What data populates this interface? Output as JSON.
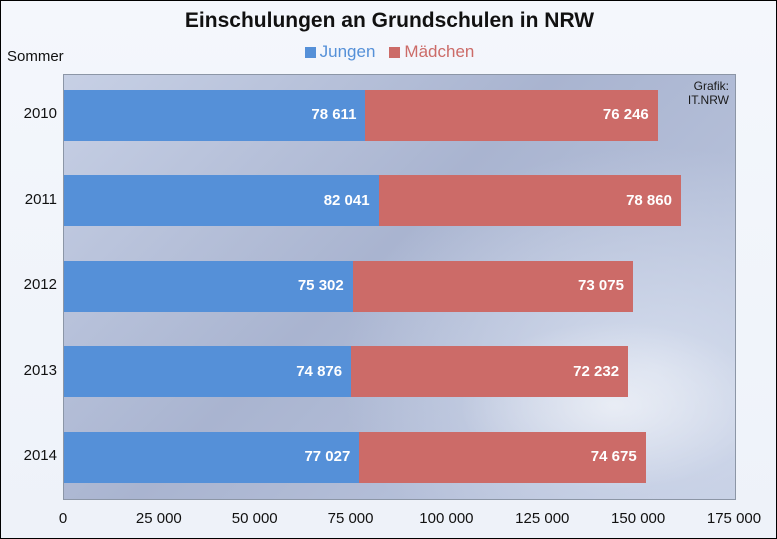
{
  "chart_data": {
    "type": "bar",
    "orientation": "horizontal",
    "stacked": true,
    "title": "Einschulungen an Grundschulen in NRW",
    "ylabel": "Sommer",
    "credit": [
      "Grafik:",
      "IT.NRW"
    ],
    "categories": [
      "2010",
      "2011",
      "2012",
      "2013",
      "2014"
    ],
    "series": [
      {
        "name": "Jungen",
        "color": "#5590d8",
        "values": [
          78611,
          82041,
          75302,
          74876,
          77027
        ],
        "labels": [
          "78 611",
          "82 041",
          "75 302",
          "74 876",
          "77 027"
        ]
      },
      {
        "name": "Mädchen",
        "color": "#cc6b68",
        "values": [
          76246,
          78860,
          73075,
          72232,
          74675
        ],
        "labels": [
          "76 246",
          "78 860",
          "73 075",
          "72 232",
          "74 675"
        ]
      }
    ],
    "xlim": [
      0,
      175000
    ],
    "xticks": [
      0,
      25000,
      50000,
      75000,
      100000,
      125000,
      150000,
      175000
    ],
    "xtick_labels": [
      "0",
      "25 000",
      "50 000",
      "75 000",
      "100 000",
      "125 000",
      "150 000",
      "175 000"
    ],
    "legend_position": "top-center",
    "grid": false
  }
}
